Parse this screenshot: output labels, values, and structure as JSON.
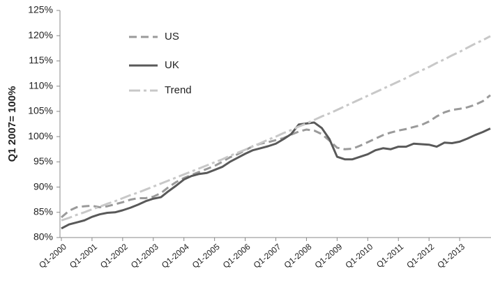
{
  "chart_data": {
    "type": "line",
    "y_label": "Q1 2007= 100%",
    "categories": [
      "Q1-2000",
      null,
      null,
      null,
      "Q1-2001",
      null,
      null,
      null,
      "Q1-2002",
      null,
      null,
      null,
      "Q1-2003",
      null,
      null,
      null,
      "Q1-2004",
      null,
      null,
      null,
      "Q1-2005",
      null,
      null,
      null,
      "Q1-2006",
      null,
      null,
      null,
      "Q1-2007",
      null,
      null,
      null,
      "Q1-2008",
      null,
      null,
      null,
      "Q1-2009",
      null,
      null,
      null,
      "Q1-2010",
      null,
      null,
      null,
      "Q1-2011",
      null,
      null,
      null,
      "Q1-2012",
      null,
      null,
      null,
      "Q1-2013",
      null,
      null,
      null,
      null
    ],
    "series": [
      {
        "name": "US",
        "color": "#9a9a9a",
        "dash": "dashed",
        "values": [
          84.0,
          85.3,
          86.0,
          86.2,
          86.3,
          86.0,
          86.2,
          86.6,
          87.0,
          87.5,
          87.8,
          87.8,
          88.1,
          88.8,
          90.0,
          91.0,
          91.8,
          92.4,
          93.0,
          93.6,
          94.2,
          95.0,
          95.9,
          96.5,
          97.3,
          98.1,
          98.6,
          98.9,
          99.3,
          99.7,
          100.4,
          101.0,
          101.4,
          101.2,
          100.5,
          99.2,
          97.8,
          97.5,
          97.6,
          98.2,
          98.9,
          99.6,
          100.3,
          100.8,
          101.2,
          101.5,
          101.9,
          102.3,
          103.0,
          104.0,
          104.8,
          105.3,
          105.5,
          105.8,
          106.3,
          107.0,
          108.2
        ]
      },
      {
        "name": "UK",
        "color": "#595959",
        "dash": "solid",
        "values": [
          81.8,
          82.6,
          83.0,
          83.4,
          84.1,
          84.6,
          84.9,
          85.0,
          85.4,
          85.9,
          86.5,
          87.2,
          87.7,
          88.0,
          89.2,
          90.3,
          91.5,
          92.2,
          92.6,
          92.8,
          93.4,
          94.0,
          95.0,
          95.8,
          96.6,
          97.3,
          97.7,
          98.1,
          98.6,
          99.5,
          100.5,
          102.4,
          102.6,
          102.8,
          101.7,
          99.5,
          96.0,
          95.5,
          95.5,
          96.0,
          96.5,
          97.3,
          97.7,
          97.5,
          98.0,
          98.0,
          98.6,
          98.5,
          98.4,
          98.0,
          98.8,
          98.7,
          99.0,
          99.6,
          100.3,
          100.9,
          101.6
        ]
      },
      {
        "name": "Trend",
        "color": "#c8c8c8",
        "dash": "dashdot",
        "values": [
          83.4,
          83.9,
          84.5,
          85.0,
          85.6,
          86.1,
          86.7,
          87.2,
          87.8,
          88.4,
          88.9,
          89.5,
          90.1,
          90.7,
          91.3,
          91.9,
          92.5,
          93.1,
          93.7,
          94.3,
          94.9,
          95.5,
          96.2,
          96.8,
          97.4,
          98.1,
          98.7,
          99.4,
          100.0,
          100.7,
          101.3,
          102.0,
          102.6,
          103.3,
          104.0,
          104.6,
          105.3,
          106.0,
          106.7,
          107.4,
          108.1,
          108.8,
          109.5,
          110.2,
          110.9,
          111.6,
          112.4,
          113.1,
          113.8,
          114.6,
          115.3,
          116.1,
          116.8,
          117.6,
          118.4,
          119.1,
          119.9
        ]
      }
    ],
    "ylim": [
      80,
      125
    ],
    "yticks": [
      {
        "value": 80,
        "label": "80%"
      },
      {
        "value": 85,
        "label": "85%"
      },
      {
        "value": 90,
        "label": "90%"
      },
      {
        "value": 95,
        "label": "95%"
      },
      {
        "value": 100,
        "label": "100%"
      },
      {
        "value": 105,
        "label": "105%"
      },
      {
        "value": 110,
        "label": "110%"
      },
      {
        "value": 115,
        "label": "115%"
      },
      {
        "value": 120,
        "label": "120%"
      },
      {
        "value": 125,
        "label": "125%"
      }
    ],
    "grid": false,
    "legend": "upper-left"
  }
}
